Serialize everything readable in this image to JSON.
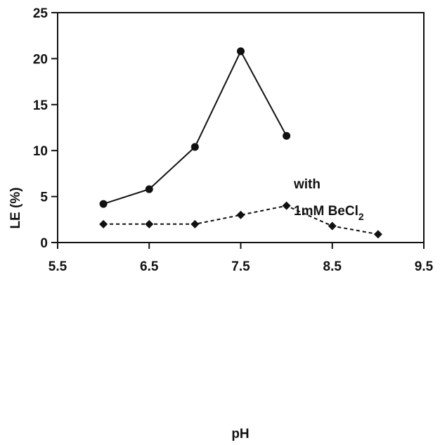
{
  "chart_data": {
    "type": "line",
    "xlabel": "pH",
    "ylabel": "LE (%)",
    "xlim": [
      5.5,
      9.5
    ],
    "ylim": [
      0,
      25
    ],
    "xticks": [
      "5.5",
      "6.5",
      "7.5",
      "8.5",
      "9.5"
    ],
    "yticks": [
      "0",
      "5",
      "10",
      "15",
      "20",
      "25"
    ],
    "grid": false,
    "series": [
      {
        "marker": "circle",
        "line": "solid",
        "x": [
          6.0,
          6.5,
          7.0,
          7.5,
          8.0
        ],
        "y": [
          4.2,
          5.8,
          10.4,
          20.8,
          11.6
        ]
      },
      {
        "marker": "diamond",
        "line": "dashed",
        "x": [
          6.0,
          6.5,
          7.0,
          7.5,
          8.0,
          8.5,
          9.0
        ],
        "y": [
          2.0,
          2.0,
          2.0,
          3.0,
          4.0,
          1.8,
          0.9
        ]
      }
    ],
    "annotation": {
      "line1": "with",
      "line2_prefix": "1mM BeCl",
      "line2_subscript": "2"
    }
  }
}
